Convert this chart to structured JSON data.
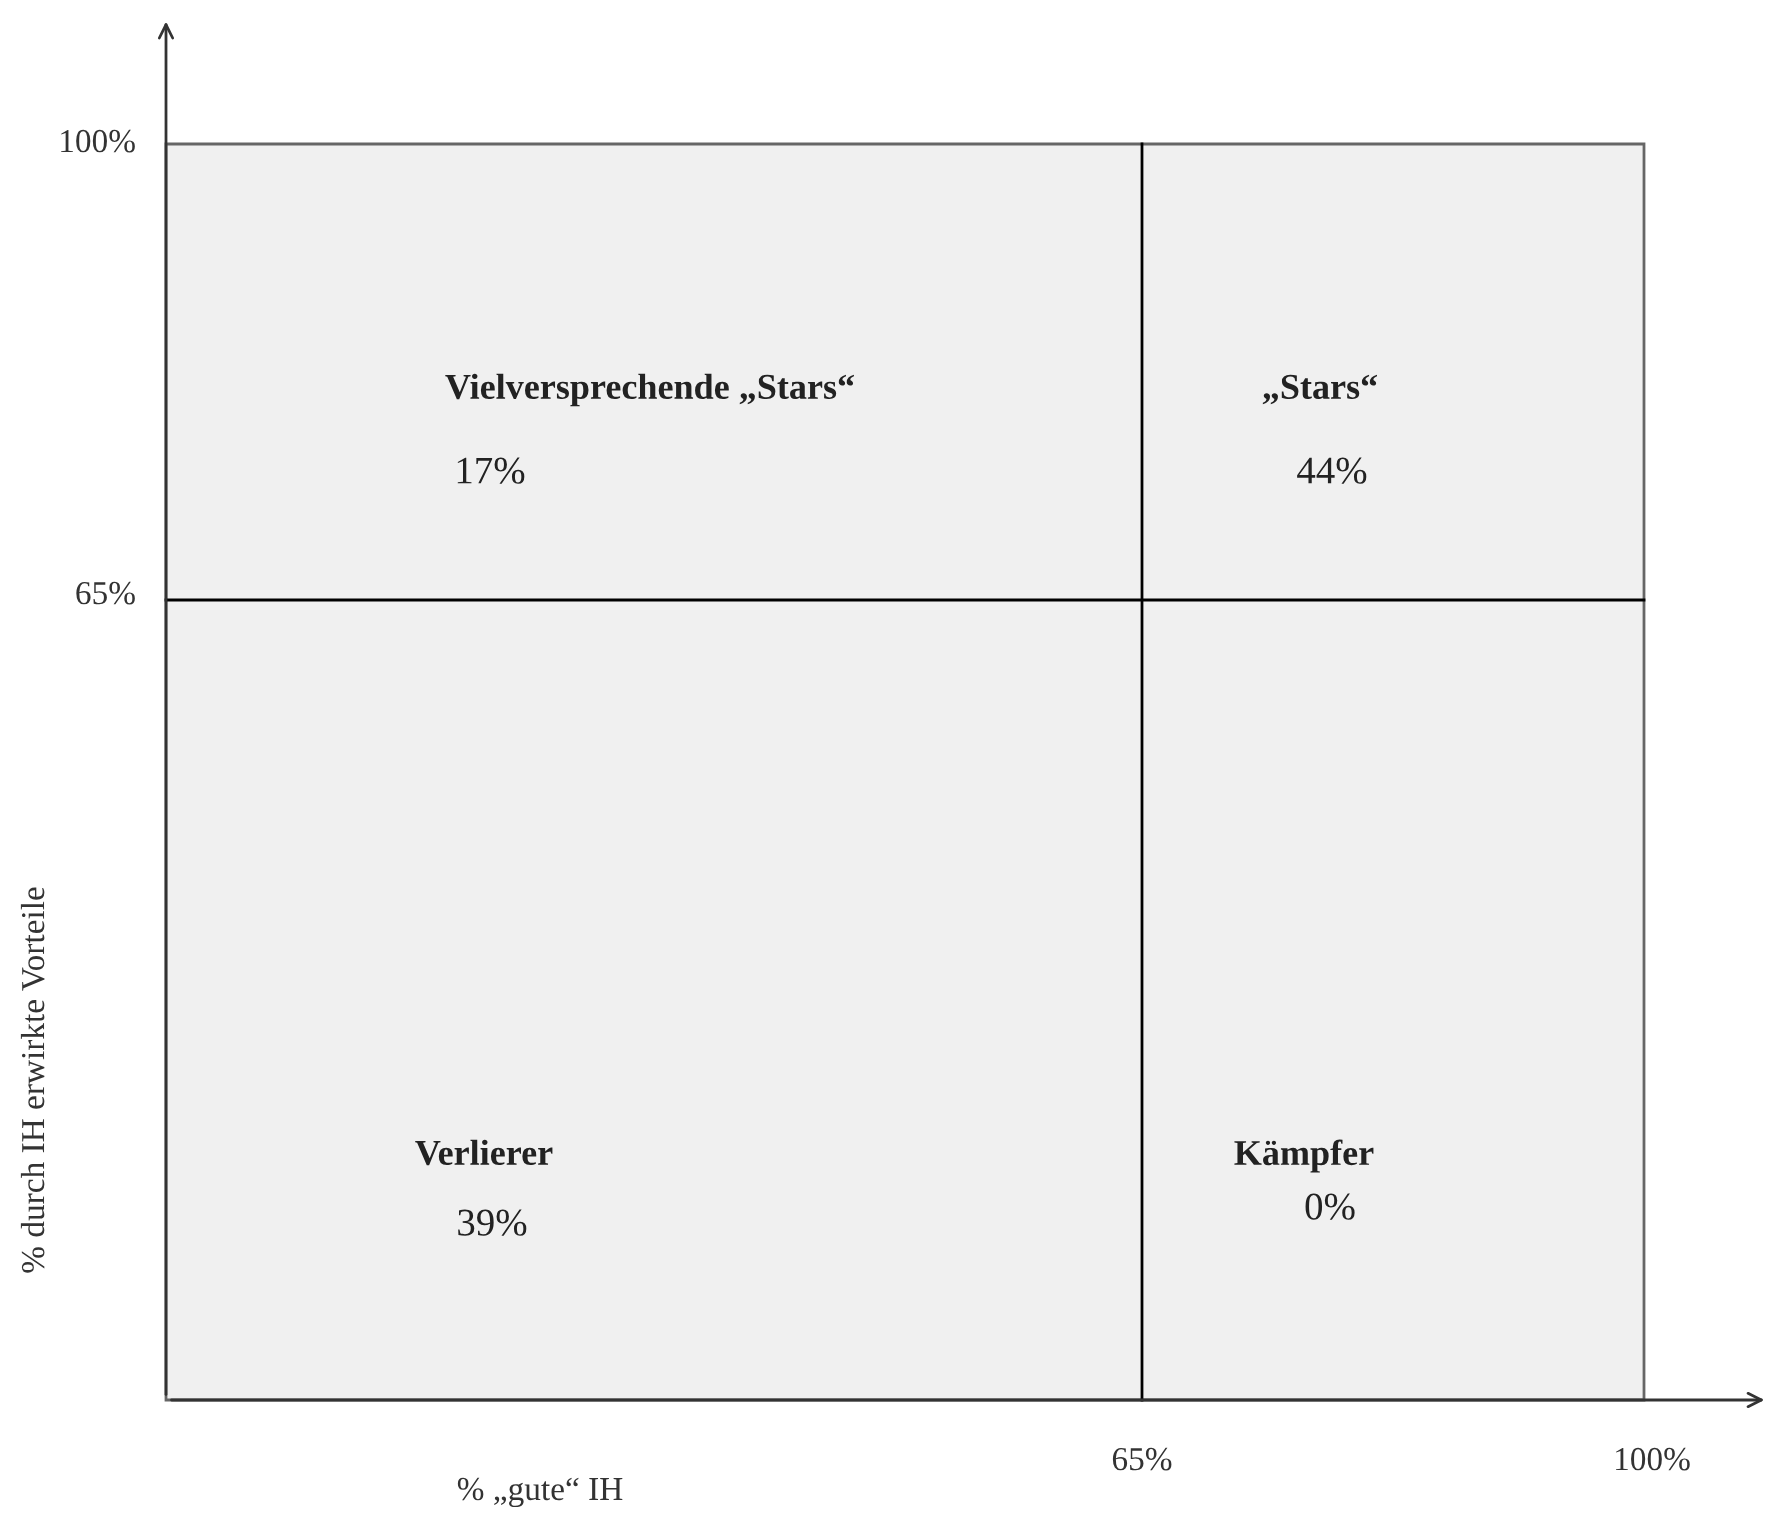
{
  "chart_data": {
    "type": "other",
    "xlabel": "% „gute“ IH",
    "ylabel": "% durch IH erwirkte Vorteile",
    "categories": [
      "Vielversprechende „Stars“",
      "„Stars“",
      "Verlierer",
      "Kämpfer"
    ],
    "values": [
      17,
      44,
      39,
      0
    ],
    "value_labels": [
      "17%",
      "44%",
      "39%",
      "0%"
    ],
    "annotations": [
      "100%",
      "65%",
      "65%",
      "100%"
    ]
  }
}
